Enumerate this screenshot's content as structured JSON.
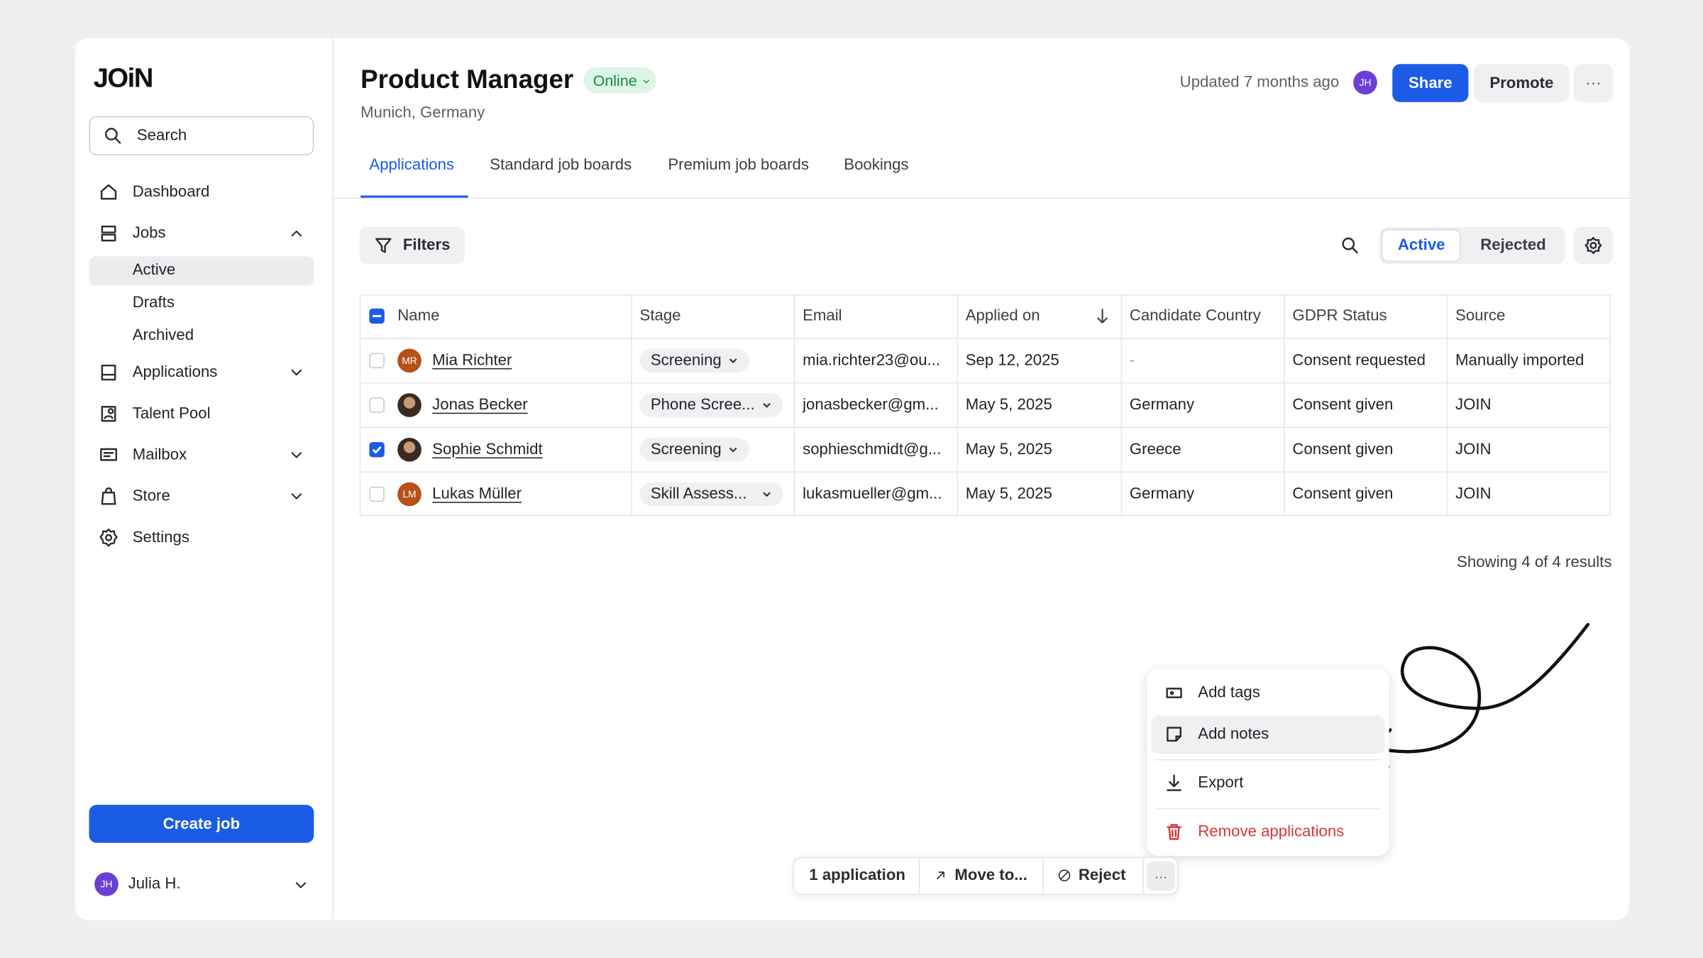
{
  "sidebar": {
    "logo": "JOiN",
    "search": "Search",
    "nav": [
      {
        "label": "Dashboard"
      },
      {
        "label": "Jobs",
        "children": [
          "Active",
          "Drafts",
          "Archived"
        ]
      },
      {
        "label": "Applications"
      },
      {
        "label": "Talent Pool"
      },
      {
        "label": "Mailbox"
      },
      {
        "label": "Store"
      },
      {
        "label": "Settings"
      }
    ],
    "create_job": "Create job",
    "user": {
      "initials": "JH",
      "name": "Julia H."
    }
  },
  "header": {
    "title": "Product Manager",
    "status": "Online",
    "location": "Munich, Germany",
    "updated": "Updated 7 months ago",
    "avatar": "JH",
    "share": "Share",
    "promote": "Promote"
  },
  "tabs": [
    "Applications",
    "Standard job boards",
    "Premium job boards",
    "Bookings"
  ],
  "toolbar": {
    "filters": "Filters",
    "segments": [
      "Active",
      "Rejected"
    ]
  },
  "table": {
    "columns": [
      "Name",
      "Stage",
      "Email",
      "Applied on",
      "Candidate Country",
      "GDPR Status",
      "Source"
    ],
    "rows": [
      {
        "initials": "MR",
        "name": "Mia Richter",
        "stage": "Screening",
        "email": "mia.richter23@ou...",
        "applied": "Sep 12, 2025",
        "country": "-",
        "gdpr": "Consent requested",
        "source": "Manually imported",
        "selected": false
      },
      {
        "name": "Jonas Becker",
        "stage": "Phone Scree...",
        "email": "jonasbecker@gm...",
        "applied": "May 5, 2025",
        "country": "Germany",
        "gdpr": "Consent given",
        "source": "JOIN",
        "selected": false
      },
      {
        "name": "Sophie Schmidt",
        "stage": "Screening",
        "email": "sophieschmidt@g...",
        "applied": "May 5, 2025",
        "country": "Greece",
        "gdpr": "Consent given",
        "source": "JOIN",
        "selected": true
      },
      {
        "initials": "LM",
        "name": "Lukas Müller",
        "stage": "Skill Assess...",
        "email": "lukasmueller@gm...",
        "applied": "May 5, 2025",
        "country": "Germany",
        "gdpr": "Consent given",
        "source": "JOIN",
        "selected": false
      }
    ]
  },
  "results": "Showing 4 of 4 results",
  "menu": [
    "Add tags",
    "Add notes",
    "Export",
    "Remove applications"
  ],
  "bulk_bar": [
    "1 application",
    "Move to...",
    "Reject"
  ]
}
